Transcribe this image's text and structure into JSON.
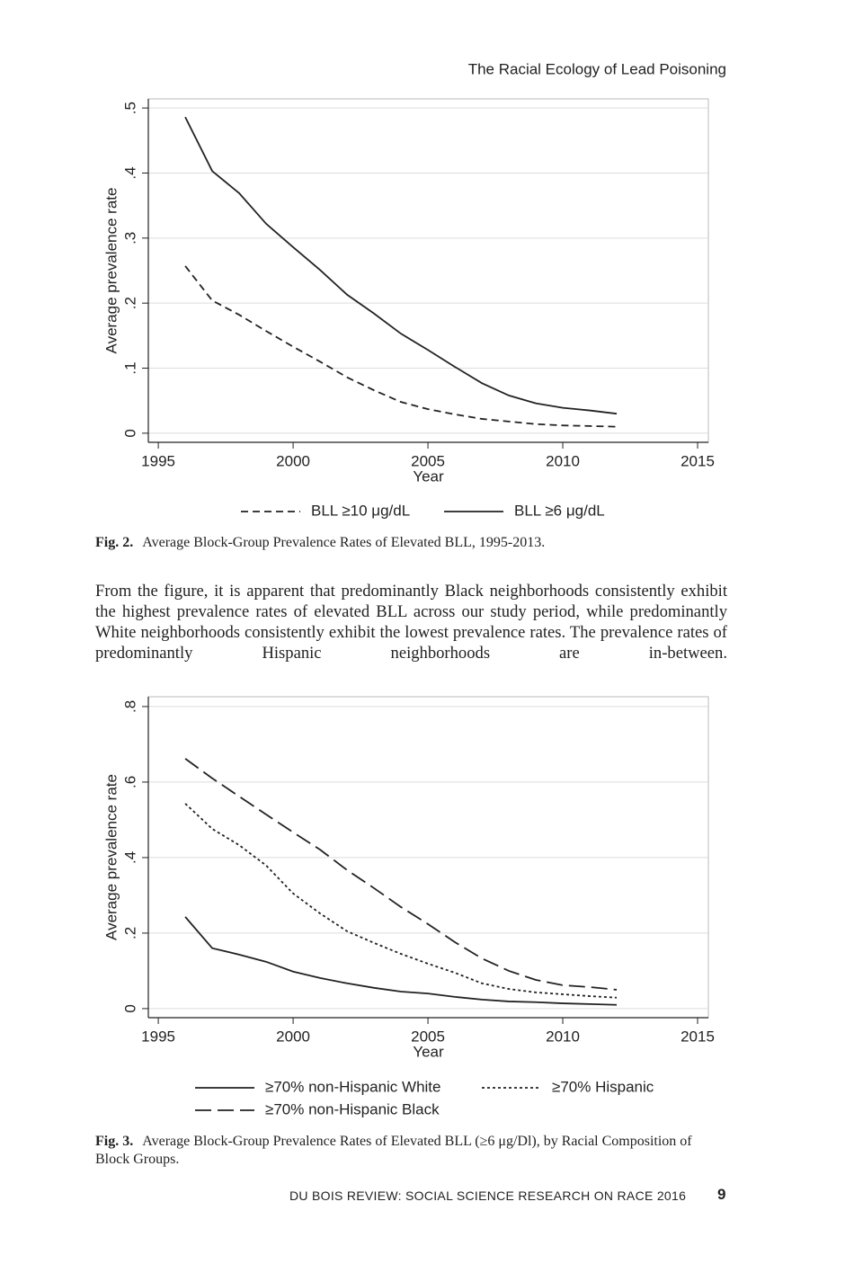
{
  "running_head": "The Racial Ecology of Lead Poisoning",
  "chart_data": [
    {
      "type": "line",
      "y_label": "Average prevalence rate",
      "x_label": "Year",
      "x": [
        1996,
        1997,
        1998,
        1999,
        2000,
        2001,
        2002,
        2003,
        2004,
        2005,
        2006,
        2007,
        2008,
        2009,
        2010,
        2011,
        2012
      ],
      "series": [
        {
          "name": "BLL ≥10 μg/dL",
          "color": "#222222",
          "dash": "dashed",
          "values": [
            0.257,
            0.204,
            0.182,
            0.157,
            0.133,
            0.11,
            0.086,
            0.066,
            0.048,
            0.037,
            0.029,
            0.022,
            0.018,
            0.014,
            0.012,
            0.011,
            0.01
          ]
        },
        {
          "name": "BLL ≥6 μg/dL",
          "color": "#222222",
          "dash": "solid",
          "values": [
            0.486,
            0.403,
            0.369,
            0.322,
            0.286,
            0.251,
            0.213,
            0.184,
            0.153,
            0.128,
            0.102,
            0.077,
            0.058,
            0.046,
            0.039,
            0.035,
            0.03
          ]
        }
      ],
      "xlim": [
        1994.63,
        2015.4
      ],
      "xticks": [
        1995,
        2000,
        2005,
        2010,
        2015
      ],
      "ylim": [
        -0.014,
        0.514
      ],
      "yticks": [
        0,
        {
          "value": 0.1,
          "label": ".1"
        },
        {
          "value": 0.2,
          "label": ".2"
        },
        {
          "value": 0.3,
          "label": ".3"
        },
        {
          "value": 0.4,
          "label": ".4"
        },
        {
          "value": 0.5,
          "label": ".5"
        }
      ],
      "grid": true
    },
    {
      "type": "line",
      "y_label": "Average prevalence rate",
      "x_label": "Year",
      "x": [
        1996,
        1997,
        1998,
        1999,
        2000,
        2001,
        2002,
        2003,
        2004,
        2005,
        2006,
        2007,
        2008,
        2009,
        2010,
        2011,
        2012
      ],
      "series": [
        {
          "name": "≥70% non-Hispanic White",
          "color": "#222222",
          "dash": "solid",
          "values": [
            0.243,
            0.16,
            0.143,
            0.124,
            0.098,
            0.081,
            0.067,
            0.055,
            0.045,
            0.04,
            0.031,
            0.024,
            0.019,
            0.017,
            0.014,
            0.012,
            0.01
          ]
        },
        {
          "name": "≥70% Hispanic",
          "color": "#222222",
          "dash": "dotted",
          "values": [
            0.543,
            0.476,
            0.433,
            0.379,
            0.305,
            0.252,
            0.205,
            0.174,
            0.145,
            0.119,
            0.095,
            0.067,
            0.052,
            0.043,
            0.038,
            0.033,
            0.029
          ]
        },
        {
          "name": "≥70% non-Hispanic Black",
          "color": "#222222",
          "dash": "longdash",
          "values": [
            0.662,
            0.61,
            0.562,
            0.514,
            0.467,
            0.421,
            0.367,
            0.319,
            0.269,
            0.224,
            0.176,
            0.133,
            0.1,
            0.076,
            0.062,
            0.057,
            0.05
          ]
        }
      ],
      "xlim": [
        1994.63,
        2015.4
      ],
      "xticks": [
        1995,
        2000,
        2005,
        2010,
        2015
      ],
      "ylim": [
        -0.024,
        0.826
      ],
      "yticks": [
        0,
        {
          "value": 0.2,
          "label": ".2"
        },
        {
          "value": 0.4,
          "label": ".4"
        },
        {
          "value": 0.6,
          "label": ".6"
        },
        {
          "value": 0.8,
          "label": ".8"
        }
      ],
      "grid": true
    }
  ],
  "captions": [
    {
      "label": "Fig. 2.",
      "text": "Average Block-Group Prevalence Rates of Elevated BLL, 1995-2013."
    },
    {
      "label": "Fig. 3.",
      "text": "Average Block-Group Prevalence Rates of Elevated BLL (≥6 μg/Dl), by Racial Composition of Block Groups."
    }
  ],
  "body": "From the figure, it is apparent that predominantly Black neighborhoods consistently exhibit the highest prevalence rates of elevated BLL across our study period, while predominantly White neighborhoods consistently exhibit the lowest prevalence rates. The prevalence rates of predominantly Hispanic neighborhoods are in-between.",
  "footer": {
    "journal": "DU BOIS REVIEW: SOCIAL SCIENCE RESEARCH ON RACE 2016",
    "page": "9"
  }
}
